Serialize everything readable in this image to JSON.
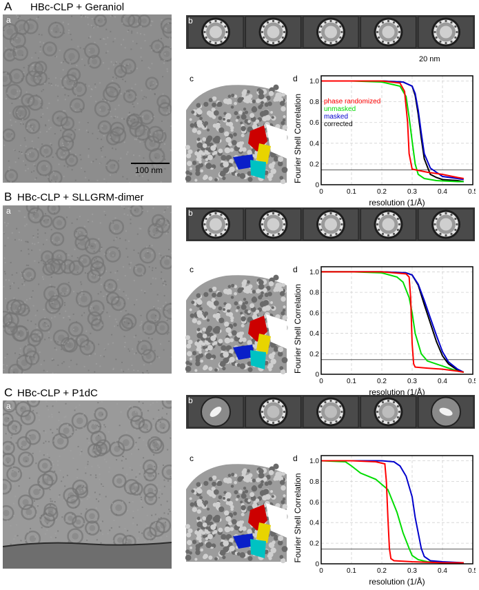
{
  "panels": [
    {
      "letter": "A",
      "title": "HBc-CLP + Geraniol",
      "sub_a": "a",
      "sub_b": "b",
      "sub_c": "c",
      "sub_d": "d",
      "scalebar_micrograph": "100 nm",
      "scalebar_classes": "20 nm"
    },
    {
      "letter": "B",
      "title": "HBc-CLP + SLLGRM-dimer",
      "sub_a": "a",
      "sub_b": "b",
      "sub_c": "c",
      "sub_d": "d"
    },
    {
      "letter": "C",
      "title": "HBc-CLP + P1dC",
      "sub_a": "a",
      "sub_b": "b",
      "sub_c": "c",
      "sub_d": "d"
    }
  ],
  "colors": {
    "phase_randomized": "#ff0000",
    "unmasked": "#00dd00",
    "masked": "#0000cc",
    "corrected": "#000000",
    "threshold": "#555555"
  },
  "chart_data": [
    {
      "type": "line",
      "xlabel": "resolution (1/Å)",
      "ylabel": "Fourier Shell Correlation",
      "xlim": [
        0,
        0.5
      ],
      "ylim": [
        0,
        1.05
      ],
      "xticks": [
        "0",
        "0.1",
        "0.2",
        "0.3",
        "0.4",
        "0.5"
      ],
      "yticks": [
        "0",
        "0.2",
        "0.4",
        "0.6",
        "0.8",
        "1.0"
      ],
      "threshold": 0.143,
      "grid": true,
      "legend_position": "left",
      "series": [
        {
          "name": "phase randomized",
          "x": [
            0,
            0.1,
            0.2,
            0.26,
            0.275,
            0.285,
            0.29,
            0.3,
            0.35,
            0.4,
            0.45,
            0.47
          ],
          "y": [
            1.0,
            1.0,
            1.0,
            0.98,
            0.9,
            0.6,
            0.3,
            0.15,
            0.12,
            0.1,
            0.07,
            0.06
          ]
        },
        {
          "name": "unmasked",
          "x": [
            0,
            0.1,
            0.2,
            0.26,
            0.28,
            0.29,
            0.3,
            0.31,
            0.32,
            0.34,
            0.38,
            0.45,
            0.47
          ],
          "y": [
            1.0,
            1.0,
            0.99,
            0.95,
            0.85,
            0.65,
            0.42,
            0.2,
            0.1,
            0.06,
            0.04,
            0.03,
            0.03
          ]
        },
        {
          "name": "masked",
          "x": [
            0,
            0.1,
            0.2,
            0.27,
            0.3,
            0.31,
            0.32,
            0.33,
            0.34,
            0.36,
            0.38,
            0.4,
            0.45,
            0.47
          ],
          "y": [
            1.0,
            1.0,
            1.0,
            0.99,
            0.95,
            0.88,
            0.72,
            0.5,
            0.3,
            0.16,
            0.12,
            0.08,
            0.06,
            0.05
          ]
        },
        {
          "name": "corrected",
          "x": [
            0,
            0.1,
            0.2,
            0.27,
            0.3,
            0.31,
            0.32,
            0.33,
            0.34,
            0.36,
            0.38,
            0.4,
            0.45,
            0.47
          ],
          "y": [
            1.0,
            1.0,
            1.0,
            0.99,
            0.95,
            0.86,
            0.68,
            0.45,
            0.25,
            0.1,
            0.07,
            0.05,
            0.04,
            0.03
          ]
        }
      ]
    },
    {
      "type": "line",
      "xlabel": "resolution (1/Å)",
      "ylabel": "Fourier Shell Correlation",
      "xlim": [
        0,
        0.5
      ],
      "ylim": [
        0,
        1.05
      ],
      "xticks": [
        "0",
        "0.1",
        "0.2",
        "0.3",
        "0.4",
        "0.5"
      ],
      "yticks": [
        "0",
        "0.2",
        "0.4",
        "0.6",
        "0.8",
        "1.0"
      ],
      "threshold": 0.143,
      "grid": true,
      "series": [
        {
          "x": [
            0,
            0.1,
            0.2,
            0.28,
            0.29,
            0.295,
            0.3,
            0.305,
            0.31,
            0.35,
            0.4,
            0.45,
            0.47
          ],
          "y": [
            1.0,
            1.0,
            1.0,
            0.98,
            0.95,
            0.75,
            0.3,
            0.1,
            0.07,
            0.06,
            0.05,
            0.03,
            0.02
          ]
        },
        {
          "x": [
            0,
            0.1,
            0.2,
            0.25,
            0.27,
            0.29,
            0.3,
            0.31,
            0.33,
            0.35,
            0.4,
            0.45,
            0.47
          ],
          "y": [
            1.0,
            1.0,
            0.99,
            0.95,
            0.9,
            0.75,
            0.6,
            0.4,
            0.2,
            0.13,
            0.08,
            0.03,
            0.02
          ]
        },
        {
          "x": [
            0,
            0.1,
            0.2,
            0.28,
            0.3,
            0.32,
            0.34,
            0.36,
            0.38,
            0.4,
            0.42,
            0.45,
            0.47
          ],
          "y": [
            1.0,
            1.0,
            1.0,
            0.99,
            0.97,
            0.88,
            0.72,
            0.55,
            0.38,
            0.22,
            0.12,
            0.05,
            0.02
          ]
        },
        {
          "x": [
            0,
            0.1,
            0.2,
            0.28,
            0.3,
            0.32,
            0.34,
            0.36,
            0.38,
            0.4,
            0.42,
            0.45,
            0.47
          ],
          "y": [
            1.0,
            1.0,
            1.0,
            0.99,
            0.97,
            0.87,
            0.68,
            0.5,
            0.32,
            0.18,
            0.1,
            0.04,
            0.02
          ]
        }
      ]
    },
    {
      "type": "line",
      "xlabel": "resolution (1/Å)",
      "ylabel": "Fourier Shell Correlation",
      "xlim": [
        0,
        0.5
      ],
      "ylim": [
        0,
        1.05
      ],
      "xticks": [
        "0",
        "0.1",
        "0.2",
        "0.3",
        "0.4",
        "0.5"
      ],
      "yticks": [
        "0",
        "0.2",
        "0.4",
        "0.6",
        "0.8",
        "1.0"
      ],
      "threshold": 0.143,
      "grid": true,
      "series": [
        {
          "x": [
            0,
            0.1,
            0.18,
            0.21,
            0.215,
            0.22,
            0.225,
            0.23,
            0.24,
            0.3,
            0.4,
            0.47
          ],
          "y": [
            1.0,
            1.0,
            0.99,
            0.97,
            0.8,
            0.45,
            0.15,
            0.05,
            0.03,
            0.02,
            0.01,
            0.01
          ]
        },
        {
          "x": [
            0,
            0.08,
            0.1,
            0.13,
            0.18,
            0.22,
            0.25,
            0.27,
            0.29,
            0.3,
            0.32,
            0.35,
            0.4,
            0.47
          ],
          "y": [
            1.0,
            0.99,
            0.95,
            0.88,
            0.82,
            0.72,
            0.5,
            0.3,
            0.15,
            0.08,
            0.04,
            0.02,
            0.01,
            0.01
          ]
        },
        {
          "x": [
            0,
            0.1,
            0.2,
            0.24,
            0.26,
            0.28,
            0.3,
            0.31,
            0.32,
            0.33,
            0.34,
            0.36,
            0.4,
            0.47
          ],
          "y": [
            1.0,
            1.0,
            1.0,
            0.99,
            0.95,
            0.85,
            0.65,
            0.45,
            0.3,
            0.15,
            0.07,
            0.03,
            0.02,
            0.01
          ]
        }
      ]
    }
  ]
}
